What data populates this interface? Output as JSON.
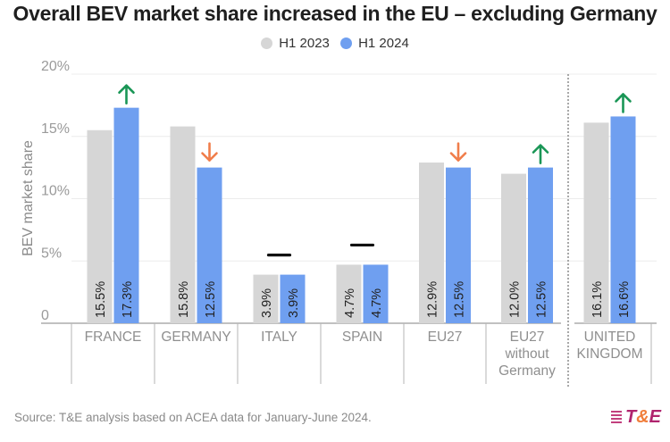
{
  "chart_data": {
    "type": "bar",
    "title": "Overall BEV market share increased in the EU – excluding Germany",
    "ylabel": "BEV market share",
    "xlabel": "",
    "ylim": [
      0,
      20
    ],
    "yticks": [
      0,
      5,
      10,
      15,
      20
    ],
    "ytick_labels": [
      "0",
      "5%",
      "10%",
      "15%",
      "20%"
    ],
    "grid": true,
    "legend_position": "top-center",
    "categories": [
      "FRANCE",
      "GERMANY",
      "ITALY",
      "SPAIN",
      "EU27",
      "EU27 without Germany",
      "UNITED KINGDOM"
    ],
    "category_label_lines": [
      [
        "FRANCE"
      ],
      [
        "GERMANY"
      ],
      [
        "ITALY"
      ],
      [
        "SPAIN"
      ],
      [
        "EU27"
      ],
      [
        "EU27",
        "without",
        "Germany"
      ],
      [
        "UNITED",
        "KINGDOM"
      ]
    ],
    "series": [
      {
        "name": "H1 2023",
        "color": "#d6d6d6",
        "values": [
          15.5,
          15.8,
          3.9,
          4.7,
          12.9,
          12.0,
          16.1
        ],
        "labels": [
          "15.5%",
          "15.8%",
          "3.9%",
          "4.7%",
          "12.9%",
          "12.0%",
          "16.1%"
        ]
      },
      {
        "name": "H1 2024",
        "color": "#6f9ff0",
        "values": [
          17.3,
          12.5,
          3.9,
          4.7,
          12.5,
          12.5,
          16.6
        ],
        "labels": [
          "17.3%",
          "12.5%",
          "3.9%",
          "4.7%",
          "12.5%",
          "12.5%",
          "16.6%"
        ]
      }
    ],
    "trend_markers": [
      "up",
      "down",
      "flat",
      "flat",
      "down",
      "up",
      "up"
    ],
    "trend_colors": {
      "up": "#1a9656",
      "down": "#f07d4a",
      "flat": "#111111"
    },
    "separator_before_last": "dotted"
  },
  "legend": [
    {
      "label": "H1 2023",
      "color": "#d6d6d6"
    },
    {
      "label": "H1 2024",
      "color": "#6f9ff0"
    }
  ],
  "source": "Source: T&E analysis based on ACEA data for January-June 2024.",
  "logo": {
    "part1": "T",
    "part2": "&",
    "part3": "E"
  }
}
